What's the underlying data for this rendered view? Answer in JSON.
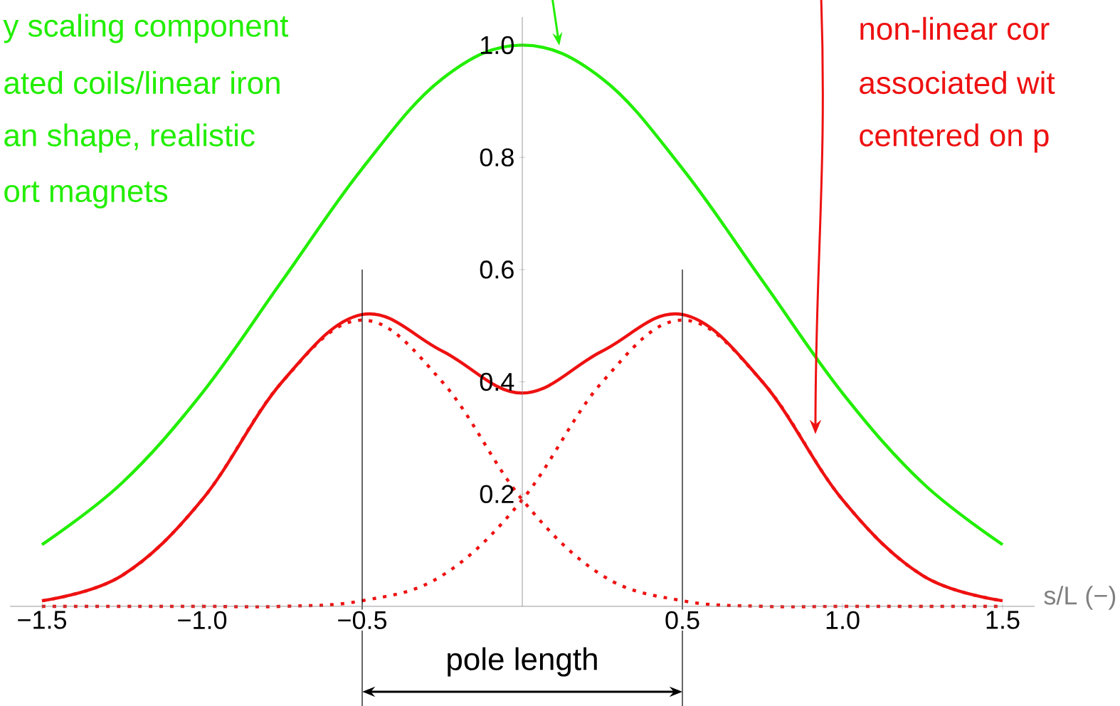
{
  "chart_data": {
    "type": "line",
    "xlabel": "s/L (−)",
    "x": [
      -1.5,
      -1.25,
      -1.0,
      -0.75,
      -0.5,
      -0.25,
      0,
      0.25,
      0.5,
      0.75,
      1.0,
      1.25,
      1.5
    ],
    "series": [
      {
        "color": "#22ee00",
        "values": [
          0.11,
          0.22,
          0.38,
          0.58,
          0.78,
          0.94,
          1.0,
          0.94,
          0.78,
          0.58,
          0.38,
          0.22,
          0.11
        ]
      },
      {
        "color": "#ee1111",
        "values": [
          0.01,
          0.055,
          0.19,
          0.4,
          0.52,
          0.455,
          0.38,
          0.455,
          0.52,
          0.4,
          0.19,
          0.055,
          0.01
        ]
      },
      {
        "color": "#ee1111",
        "line_style": "dotted",
        "values": [
          0.01,
          0.055,
          0.19,
          0.4,
          0.51,
          0.4,
          0.19,
          0.055,
          0.01,
          0,
          0,
          0,
          0
        ]
      },
      {
        "color": "#ee1111",
        "line_style": "dotted",
        "values": [
          0,
          0,
          0,
          0,
          0.01,
          0.055,
          0.19,
          0.4,
          0.51,
          0.4,
          0.19,
          0.055,
          0.01
        ]
      }
    ],
    "xlim": [
      -1.6,
      1.6
    ],
    "ylim": [
      0,
      1.05
    ],
    "xticks": [
      {
        "value": -1.5,
        "label": "−1.5"
      },
      {
        "value": -1,
        "label": "−1.0"
      },
      {
        "value": -0.5,
        "label": "−0.5"
      },
      0.5,
      {
        "value": 1,
        "label": "1.0"
      },
      1.5
    ],
    "yticks": [
      0.2,
      0.4,
      0.6,
      0.8,
      {
        "value": 1,
        "label": "1.0"
      }
    ],
    "ref_lines": [
      {
        "axis": "x",
        "value": -0.5,
        "color": "#000000"
      },
      {
        "axis": "x",
        "value": 0.5,
        "color": "#000000"
      }
    ],
    "annotations": [
      "y scaling component",
      "ated coils/linear iron",
      "an shape, realistic",
      "ort magnets",
      "non-linear cor",
      "associated wit",
      "centered on p",
      "pole length"
    ]
  }
}
